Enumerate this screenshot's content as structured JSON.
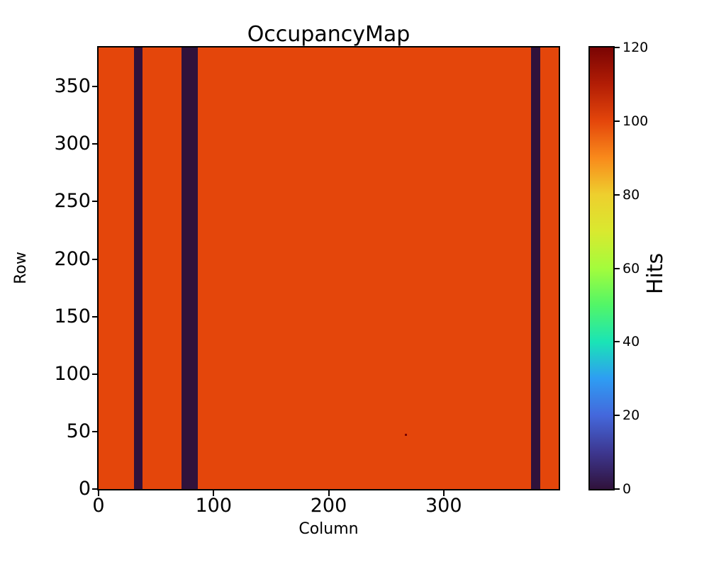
{
  "chart_data": {
    "type": "heatmap",
    "title": "OccupancyMap",
    "xlabel": "Column",
    "ylabel": "Row",
    "colorbar_label": "Hits",
    "colormap": "turbo",
    "n_columns": 400,
    "n_rows": 384,
    "xlim": [
      0,
      400
    ],
    "ylim": [
      0,
      384
    ],
    "x_ticks": [
      0,
      100,
      200,
      300
    ],
    "y_ticks": [
      0,
      50,
      100,
      150,
      200,
      250,
      300,
      350
    ],
    "colorbar_ticks": [
      0,
      20,
      40,
      60,
      80,
      100,
      120
    ],
    "value_range": [
      0,
      120
    ],
    "baseline_hits": 100,
    "baseline_color": "#e4460b",
    "dead_value": 0,
    "dead_color": "#30123b",
    "dead_column_bands": [
      {
        "from_column": 31,
        "to_column": 37
      },
      {
        "from_column": 72,
        "to_column": 85
      },
      {
        "from_column": 376,
        "to_column": 383
      }
    ],
    "outlier_pixel": {
      "column": 267,
      "row": 47,
      "value": 120,
      "color": "#7a0403"
    },
    "colorbar_gradient": [
      {
        "value": 0,
        "color": "#30123b"
      },
      {
        "value": 10,
        "color": "#3d3790"
      },
      {
        "value": 20,
        "color": "#4468dc"
      },
      {
        "value": 30,
        "color": "#2e9df3"
      },
      {
        "value": 40,
        "color": "#1ae4b6"
      },
      {
        "value": 50,
        "color": "#52f667"
      },
      {
        "value": 60,
        "color": "#a4fc3c"
      },
      {
        "value": 70,
        "color": "#d9e92f"
      },
      {
        "value": 80,
        "color": "#eecf2e"
      },
      {
        "value": 90,
        "color": "#f98a1b"
      },
      {
        "value": 100,
        "color": "#e4460b"
      },
      {
        "value": 110,
        "color": "#b21d05"
      },
      {
        "value": 120,
        "color": "#7a0403"
      }
    ]
  }
}
